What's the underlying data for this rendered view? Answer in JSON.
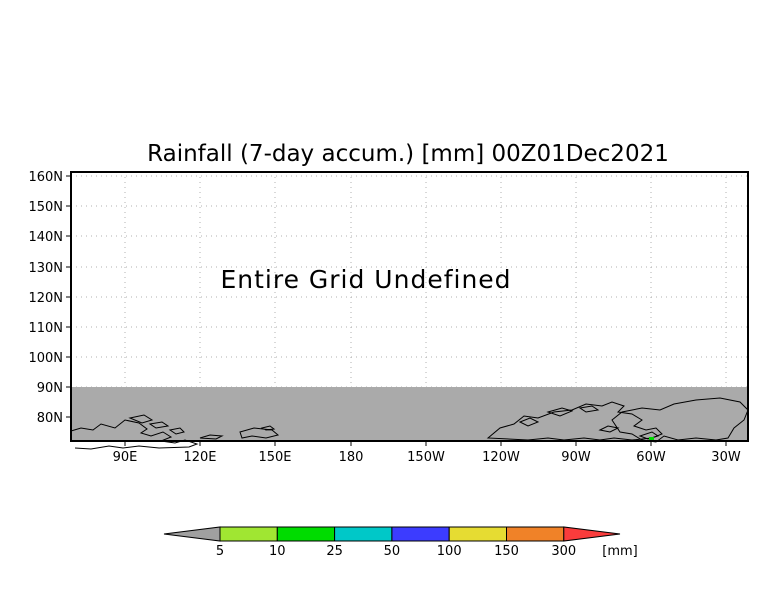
{
  "chart_data": {
    "type": "map",
    "title": "Rainfall (7-day accum.) [mm] 00Z01Dec2021",
    "message": "Entire Grid Undefined",
    "x_ticks": [
      "90E",
      "120E",
      "150E",
      "180",
      "150W",
      "120W",
      "90W",
      "60W",
      "30W"
    ],
    "y_ticks": [
      "160N",
      "150N",
      "140N",
      "130N",
      "120N",
      "110N",
      "100N",
      "90N",
      "80N"
    ],
    "grid": true,
    "undefined_region": {
      "lat_from": 72,
      "lat_to": 90,
      "color": "#aaaaaa"
    },
    "colorbar": {
      "colors": [
        "#a0a0a0",
        "#a0e632",
        "#00dc00",
        "#00c8c8",
        "#3c3cff",
        "#e6dc32",
        "#f08228",
        "#fa3c3c"
      ],
      "labels": [
        "5",
        "10",
        "25",
        "50",
        "100",
        "150",
        "300"
      ],
      "unit": "[mm]"
    }
  }
}
